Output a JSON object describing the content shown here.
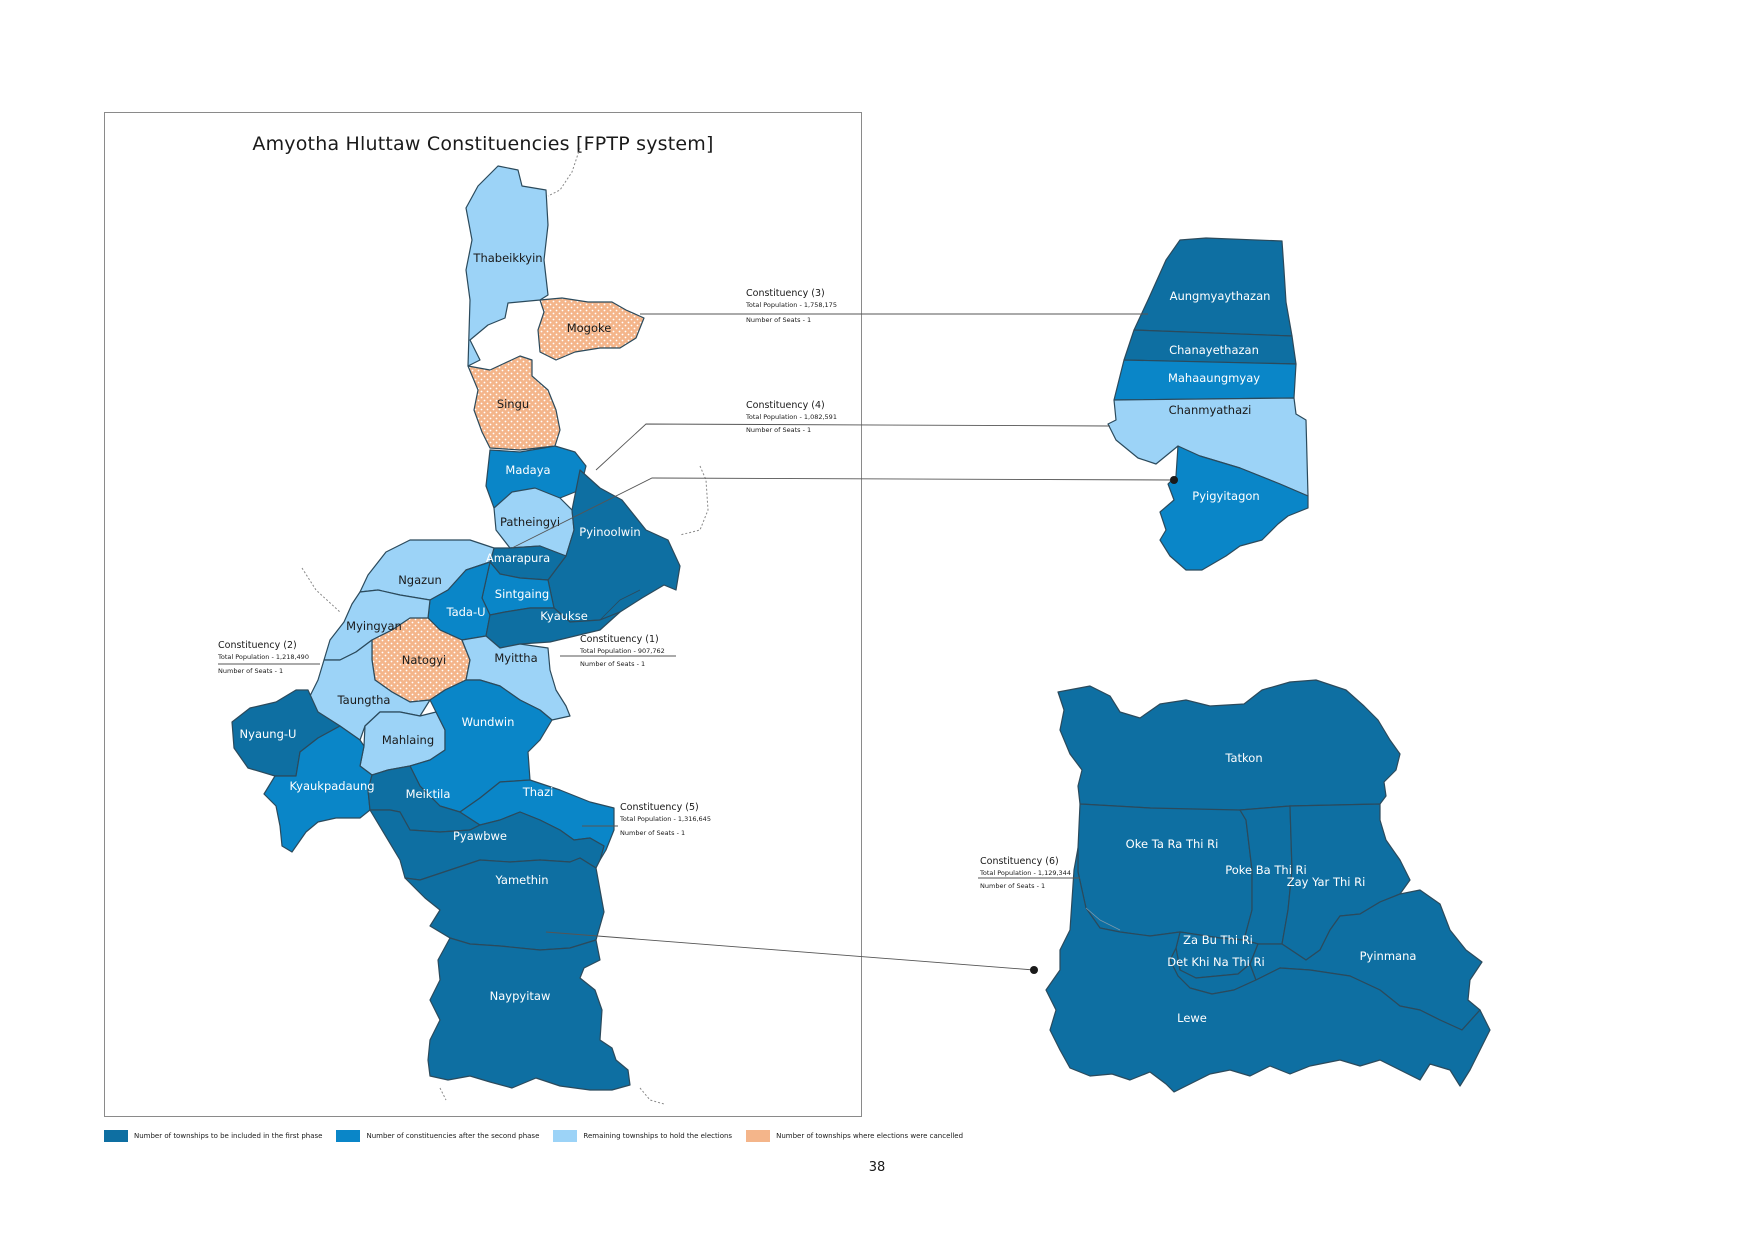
{
  "title": "Amyotha Hluttaw Constituencies [FPTP system]",
  "page_number": "38",
  "colors": {
    "first_phase": "#0e6fa2",
    "second_phase": "#0a86c8",
    "remaining": "#9cd3f7",
    "cancelled": "#f4b58a",
    "border": "#2b4a5c"
  },
  "regions": {
    "thabeikkyin": "Thabeikkyin",
    "mogoke": "Mogoke",
    "singu": "Singu",
    "madaya": "Madaya",
    "patheingyi": "Patheingyi",
    "pyinoolwin": "Pyinoolwin",
    "amarapura": "Amarapura",
    "ngazun": "Ngazun",
    "sintgaing": "Sintgaing",
    "tada_u": "Tada-U",
    "kyaukse": "Kyaukse",
    "myingyan": "Myingyan",
    "natogyi": "Natogyi",
    "myittha": "Myittha",
    "taungtha": "Taungtha",
    "nyaung_u": "Nyaung-U",
    "mahlaing": "Mahlaing",
    "wundwin": "Wundwin",
    "kyaukpadaung": "Kyaukpadaung",
    "meiktila": "Meiktila",
    "thazi": "Thazi",
    "pyawbwe": "Pyawbwe",
    "yamethin": "Yamethin",
    "naypyitaw": "Naypyitaw"
  },
  "inset_mandalay": {
    "aungmyaythazan": "Aungmyaythazan",
    "chanayethazan": "Chanayethazan",
    "mahaaungmyay": "Mahaaungmyay",
    "chanmyathazi": "Chanmyathazi",
    "pyigyitagon": "Pyigyitagon"
  },
  "inset_naypyitaw": {
    "tatkon": "Tatkon",
    "oke_ta_ra_thi_ri": "Oke Ta Ra Thi Ri",
    "poke_ba_thi_ri": "Poke Ba Thi Ri",
    "zay_yar_thi_ri": "Zay Yar Thi Ri",
    "za_bu_thi_ri": "Za Bu Thi Ri",
    "det_khi_na_thi_ri": "Det Khi Na Thi Ri",
    "pyinmana": "Pyinmana",
    "lewe": "Lewe"
  },
  "callouts": {
    "c1": {
      "title": "Constituency (1)",
      "population": "Total Population - 907,762",
      "seats": "Number of Seats - 1"
    },
    "c2": {
      "title": "Constituency (2)",
      "population": "Total Population - 1,218,490",
      "seats": "Number of Seats - 1"
    },
    "c3": {
      "title": "Constituency (3)",
      "population": "Total Population - 1,758,175",
      "seats": "Number of Seats - 1"
    },
    "c4": {
      "title": "Constituency (4)",
      "population": "Total Population - 1,082,591",
      "seats": "Number of Seats - 1"
    },
    "c5": {
      "title": "Constituency (5)",
      "population": "Total Population - 1,316,645",
      "seats": "Number of Seats - 1"
    },
    "c6": {
      "title": "Constituency (6)",
      "population": "Total Population - 1,129,344",
      "seats": "Number of Seats - 1"
    }
  },
  "legend": [
    {
      "label": "Number of townships to be included in the first phase",
      "color": "#0e6fa2"
    },
    {
      "label": "Number of constituencies after the second phase",
      "color": "#0a86c8"
    },
    {
      "label": "Remaining townships to hold the elections",
      "color": "#9cd3f7"
    },
    {
      "label": "Number of townships where elections were cancelled",
      "color": "#f4b58a"
    }
  ]
}
